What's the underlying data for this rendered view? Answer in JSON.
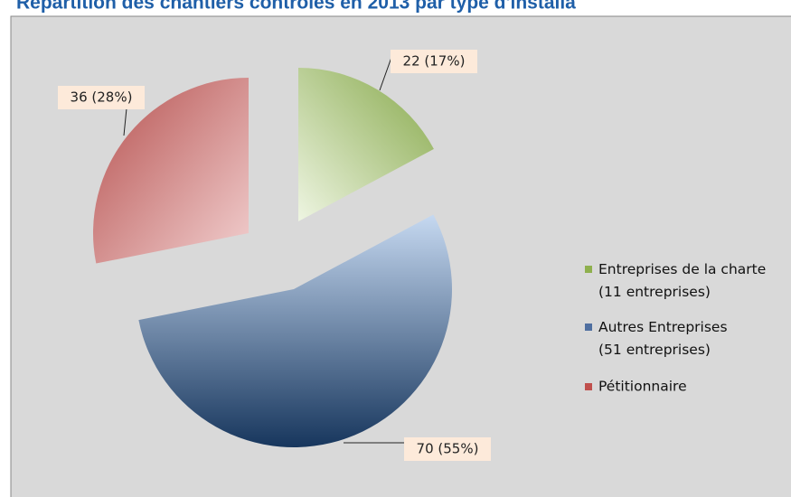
{
  "chart_data": {
    "type": "pie",
    "title": "Répartition des chantiers contrôlés en 2013 par type d'installa",
    "categories": [
      "Entreprises de la charte (11 entreprises)",
      "Autres Entreprises (51 entreprises)",
      "Pétitionnaire"
    ],
    "values": [
      22,
      70,
      36
    ],
    "value_labels": [
      "22 (17%)",
      "70 (55%)",
      "36 (28%)"
    ],
    "colors": [
      "#8fb04e",
      "#4f6fa0",
      "#c0504d"
    ],
    "legend": "right"
  }
}
